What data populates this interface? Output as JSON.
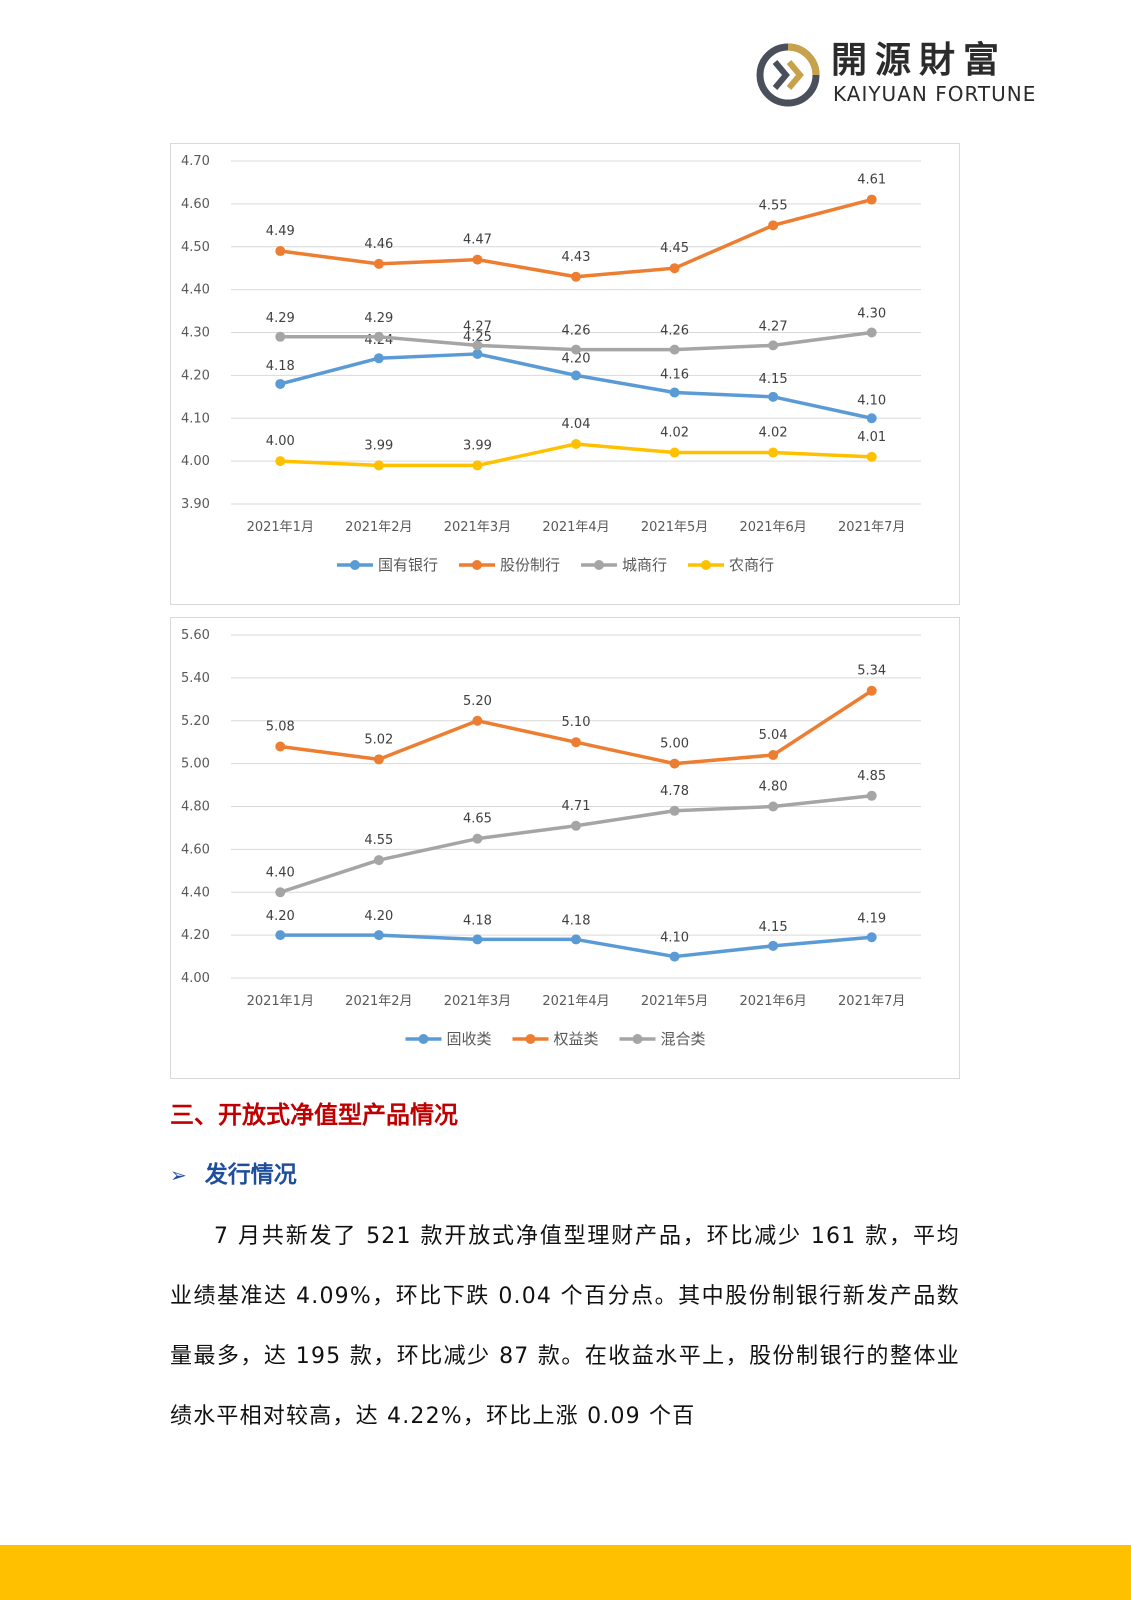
{
  "header": {
    "logo_cn": "開源財富",
    "logo_en": "KAIYUAN FORTUNE"
  },
  "charts": {
    "chart1": {
      "legend": [
        "国有银行",
        "股份制行",
        "城商行",
        "农商行"
      ]
    },
    "chart2": {
      "legend": [
        "固收类",
        "权益类",
        "混合类"
      ]
    }
  },
  "chart_data": [
    {
      "type": "line",
      "categories": [
        "2021年1月",
        "2021年2月",
        "2021年3月",
        "2021年4月",
        "2021年5月",
        "2021年6月",
        "2021年7月"
      ],
      "ylim": [
        3.9,
        4.7
      ],
      "yticks": [
        "3.90",
        "4.00",
        "4.10",
        "4.20",
        "4.30",
        "4.40",
        "4.50",
        "4.60",
        "4.70"
      ],
      "grid": true,
      "legend_position": "bottom",
      "series": [
        {
          "name": "国有银行",
          "color": "#5b9bd5",
          "values": [
            4.18,
            4.24,
            4.25,
            4.2,
            4.16,
            4.15,
            4.1
          ],
          "labels": [
            "4.18",
            "4.24",
            "4.25",
            "4.20",
            "4.16",
            "4.15",
            "4.10"
          ]
        },
        {
          "name": "股份制行",
          "color": "#ed7d31",
          "values": [
            4.49,
            4.46,
            4.47,
            4.43,
            4.45,
            4.55,
            4.61
          ],
          "labels": [
            "4.49",
            "4.46",
            "4.47",
            "4.43",
            "4.45",
            "4.55",
            "4.61"
          ]
        },
        {
          "name": "城商行",
          "color": "#a5a5a5",
          "values": [
            4.29,
            4.29,
            4.27,
            4.26,
            4.26,
            4.27,
            4.3
          ],
          "labels": [
            "4.29",
            "4.29",
            "4.27",
            "4.26",
            "4.26",
            "4.27",
            "4.30"
          ]
        },
        {
          "name": "农商行",
          "color": "#ffc000",
          "values": [
            4.0,
            3.99,
            3.99,
            4.04,
            4.02,
            4.02,
            4.01
          ],
          "labels": [
            "4.00",
            "3.99",
            "3.99",
            "4.04",
            "4.02",
            "4.02",
            "4.01"
          ]
        }
      ]
    },
    {
      "type": "line",
      "categories": [
        "2021年1月",
        "2021年2月",
        "2021年3月",
        "2021年4月",
        "2021年5月",
        "2021年6月",
        "2021年7月"
      ],
      "ylim": [
        4.0,
        5.6
      ],
      "yticks": [
        "4.00",
        "4.20",
        "4.40",
        "4.60",
        "4.80",
        "5.00",
        "5.20",
        "5.40",
        "5.60"
      ],
      "grid": true,
      "legend_position": "bottom",
      "series": [
        {
          "name": "固收类",
          "color": "#5b9bd5",
          "values": [
            4.2,
            4.2,
            4.18,
            4.18,
            4.1,
            4.15,
            4.19
          ],
          "labels": [
            "4.20",
            "4.20",
            "4.18",
            "4.18",
            "4.10",
            "4.15",
            "4.19"
          ]
        },
        {
          "name": "权益类",
          "color": "#ed7d31",
          "values": [
            5.08,
            5.02,
            5.2,
            5.1,
            5.0,
            5.04,
            5.34
          ],
          "labels": [
            "5.08",
            "5.02",
            "5.20",
            "5.10",
            "5.00",
            "5.04",
            "5.34"
          ]
        },
        {
          "name": "混合类",
          "color": "#a5a5a5",
          "values": [
            4.4,
            4.55,
            4.65,
            4.71,
            4.78,
            4.8,
            4.85
          ],
          "labels": [
            "4.40",
            "4.55",
            "4.65",
            "4.71",
            "4.78",
            "4.80",
            "4.85"
          ]
        }
      ]
    }
  ],
  "section": {
    "title": "三、开放式净值型产品情况",
    "subtitle": "发行情况",
    "paragraph": "7 月共新发了 521 款开放式净值型理财产品，环比减少 161 款，平均业绩基准达 4.09%，环比下跌 0.04 个百分点。其中股份制银行新发产品数量最多，达 195 款，环比减少 87 款。在收益水平上，股份制银行的整体业绩水平相对较高，达 4.22%，环比上涨 0.09 个百"
  }
}
